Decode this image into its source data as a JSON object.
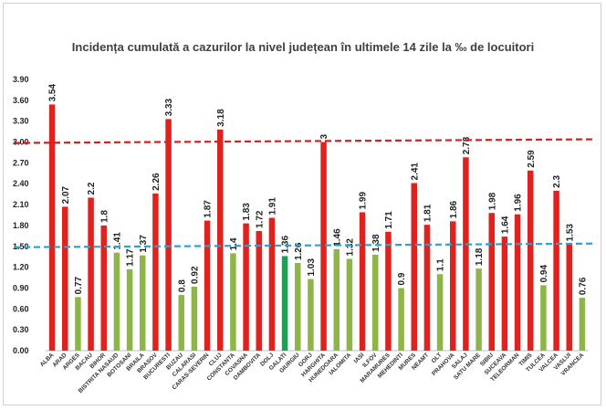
{
  "chart_data": {
    "type": "bar",
    "title": "Incidența cumulată a cazurilor la nivel județean în ultimele 14 zile la ‰ de locuitori",
    "xlabel": "",
    "ylabel": "",
    "ylim": [
      0,
      3.9
    ],
    "yticks": [
      "0.00",
      "0.30",
      "0.60",
      "0.90",
      "1.20",
      "1.50",
      "1.80",
      "2.10",
      "2.40",
      "2.70",
      "3.00",
      "3.30",
      "3.60",
      "3.90"
    ],
    "categories": [
      "ALBA",
      "ARAD",
      "ARGES",
      "BACAU",
      "BIHOR",
      "BISTRITA NASAUD",
      "BOTOSANI",
      "BRAILA",
      "BRASOV",
      "BUCURESTI",
      "BUZAU",
      "CALARASI",
      "CARAS-SEVERIN",
      "CLUJ",
      "CONSTANTA",
      "COVASNA",
      "DAMBOVITA",
      "DOLJ",
      "GALATI",
      "GIURGIU",
      "GORJ",
      "HARGHITA",
      "HUNEDOARA",
      "IALOMITA",
      "IASI",
      "ILFOV",
      "MARAMURES",
      "MEHEDINTI",
      "MURES",
      "NEAMT",
      "OLT",
      "PRAHOVA",
      "SALAJ",
      "SATU MARE",
      "SIBIU",
      "SUCEAVA",
      "TELEORMAN",
      "TIMIS",
      "TULCEA",
      "VALCEA",
      "VASLUI",
      "VRANCEA"
    ],
    "values": [
      3.54,
      2.07,
      0.77,
      2.2,
      1.8,
      1.41,
      1.17,
      1.37,
      2.26,
      3.33,
      0.8,
      0.92,
      1.87,
      3.18,
      1.4,
      1.83,
      1.72,
      1.91,
      1.36,
      1.26,
      1.03,
      3,
      1.46,
      1.32,
      1.99,
      1.38,
      1.71,
      0.9,
      2.41,
      1.81,
      1.1,
      1.86,
      2.78,
      1.18,
      1.98,
      1.64,
      1.96,
      2.59,
      0.94,
      2.3,
      1.53,
      0.76
    ],
    "value_labels": [
      "3.54",
      "2.07",
      "0.77",
      "2.2",
      "1.8",
      "1.41",
      "1.17",
      "1.37",
      "2.26",
      "3.33",
      "0.8",
      "0.92",
      "1.87",
      "3.18",
      "1.4",
      "1.83",
      "1.72",
      "1.91",
      "1.36",
      "1.26",
      "1.03",
      "3",
      "1.46",
      "1.32",
      "1.99",
      "1.38",
      "1.71",
      "0.9",
      "2.41",
      "1.81",
      "1.1",
      "1.86",
      "2.78",
      "1.18",
      "1.98",
      "1.64",
      "1.96",
      "2.59",
      "0.94",
      "2.3",
      "1.53",
      "0.76"
    ],
    "bar_colors": {
      "high": "#e0211d",
      "low": "#8db548",
      "highlight": "#1aa251"
    },
    "highlight_category": "GALATI",
    "thresholds": [
      {
        "value": 3.0,
        "color": "#d42020",
        "style": "dashed"
      },
      {
        "value": 1.5,
        "color": "#29a2d8",
        "style": "dashed"
      }
    ],
    "grid": false,
    "legend": "none"
  }
}
